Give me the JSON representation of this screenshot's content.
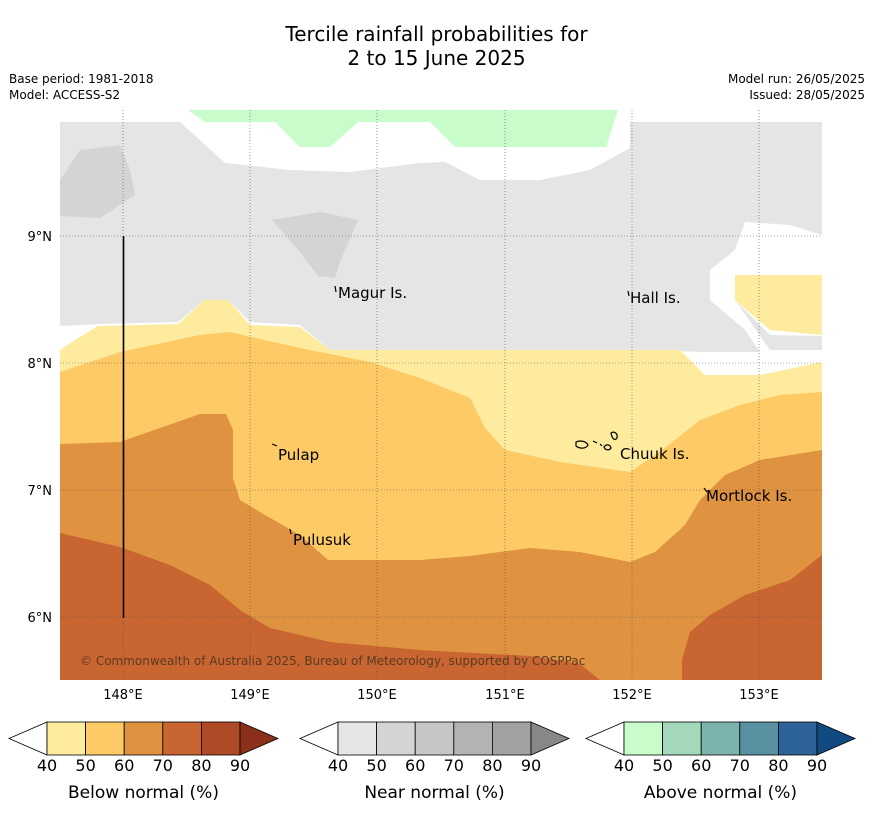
{
  "title_line1": "Tercile rainfall probabilities for",
  "title_line2": "2 to 15 June 2025",
  "base_period": "Base period: 1981-2018",
  "model": "Model: ACCESS-S2",
  "model_run": "Model run: 26/05/2025",
  "issued": "Issued: 28/05/2025",
  "copyright": "© Commonwealth of Australia 2025, Bureau of Meteorology, supported by COSPPac",
  "axes": {
    "x_ticks": [
      "148°E",
      "149°E",
      "150°E",
      "151°E",
      "152°E",
      "153°E"
    ],
    "y_ticks": [
      "9°N",
      "8°N",
      "7°N",
      "6°N"
    ]
  },
  "places": {
    "magur": "Magur Is.",
    "hall": "Hall Is.",
    "pulap": "Pulap",
    "chuuk": "Chuuk Is.",
    "mortlock": "Mortlock Is.",
    "pulusuk": "Pulusuk"
  },
  "legends": {
    "below": {
      "label": "Below normal (%)",
      "ticks": [
        "40",
        "50",
        "60",
        "70",
        "80",
        "90"
      ],
      "colors": [
        "#ffffff",
        "#ffeb9e",
        "#fdca66",
        "#df9341",
        "#c96530",
        "#af4a26",
        "#8b3018"
      ]
    },
    "near": {
      "label": "Near normal (%)",
      "ticks": [
        "40",
        "50",
        "60",
        "70",
        "80",
        "90"
      ],
      "colors": [
        "#ffffff",
        "#e5e5e5",
        "#d4d4d4",
        "#c6c6c6",
        "#b3b3b3",
        "#a2a2a2",
        "#878787"
      ]
    },
    "above": {
      "label": "Above normal (%)",
      "ticks": [
        "40",
        "50",
        "60",
        "70",
        "80",
        "90"
      ],
      "colors": [
        "#ffffff",
        "#c8fdcb",
        "#a3d8bb",
        "#7db3ae",
        "#5a91a0",
        "#2e6399",
        "#114a80"
      ]
    }
  }
}
